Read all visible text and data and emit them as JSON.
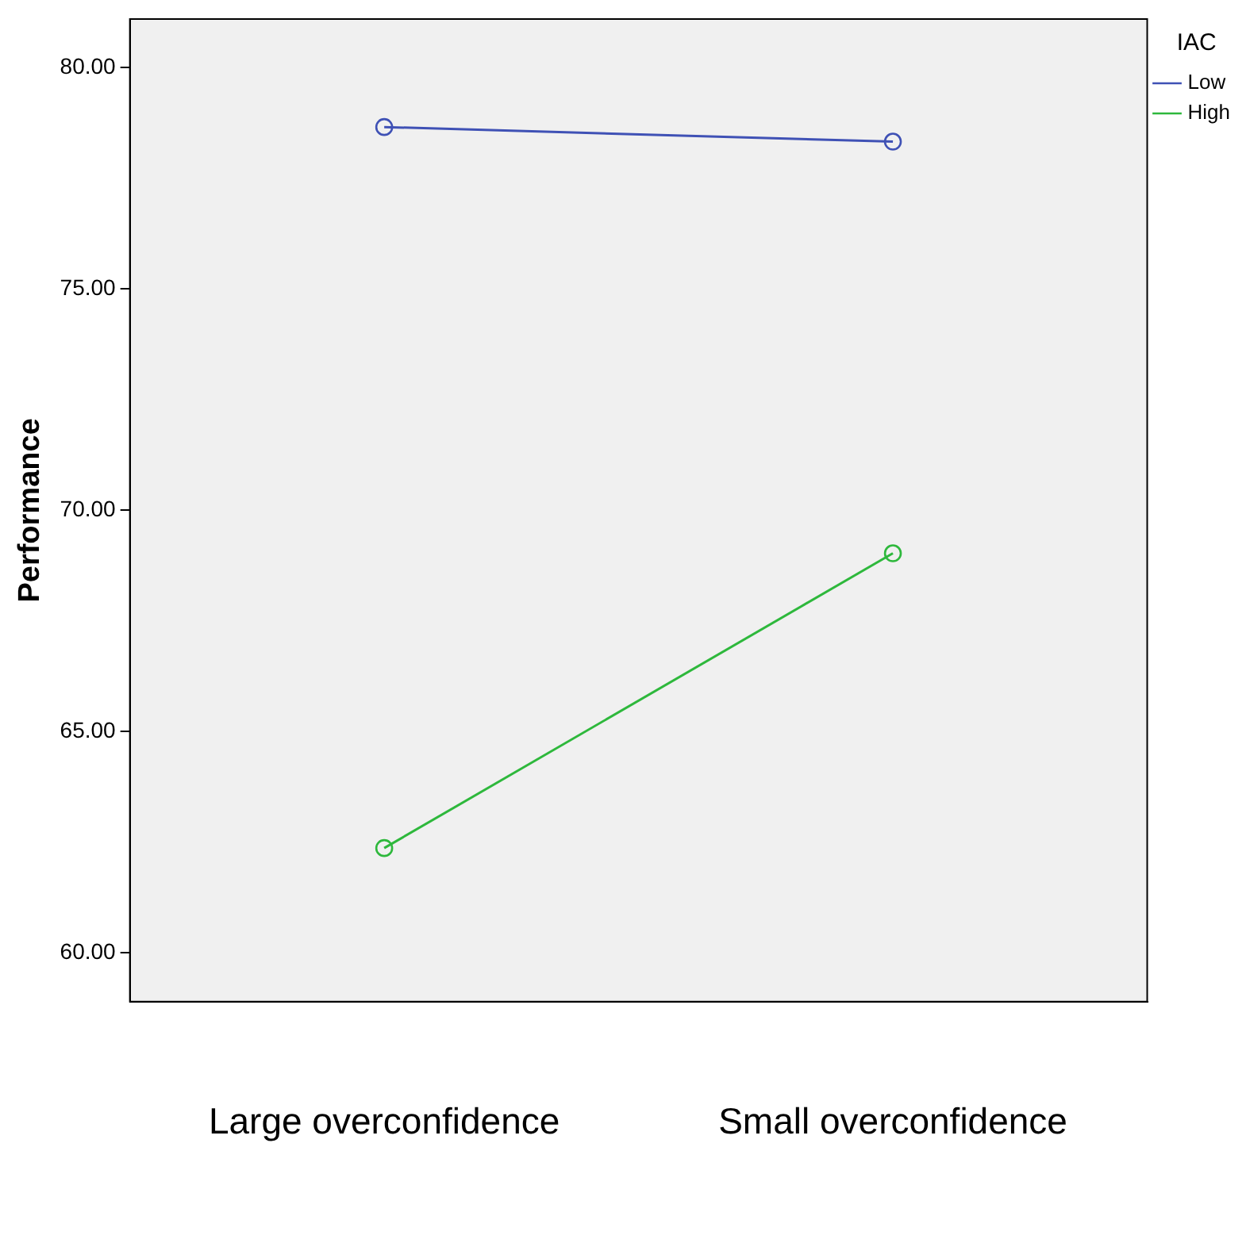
{
  "chart_data": {
    "type": "line",
    "ylabel": "Performance",
    "legend_title": "IAC",
    "categories": [
      "Large overconfidence",
      "Small overconfidence"
    ],
    "series": [
      {
        "name": "Low",
        "color": "#3f51b5",
        "values": [
          78.66,
          78.33
        ]
      },
      {
        "name": "High",
        "color": "#2eb83c",
        "values": [
          62.37,
          69.03
        ]
      }
    ],
    "ylim": [
      58.9,
      81.1
    ],
    "yticks": [
      {
        "value": 60,
        "label": "60.00"
      },
      {
        "value": 65,
        "label": "65.00"
      },
      {
        "value": 70,
        "label": "70.00"
      },
      {
        "value": 75,
        "label": "75.00"
      },
      {
        "value": 80,
        "label": "80.00"
      }
    ],
    "grid": false,
    "legend": "top right",
    "marker": "circle",
    "line_style": "solid"
  }
}
